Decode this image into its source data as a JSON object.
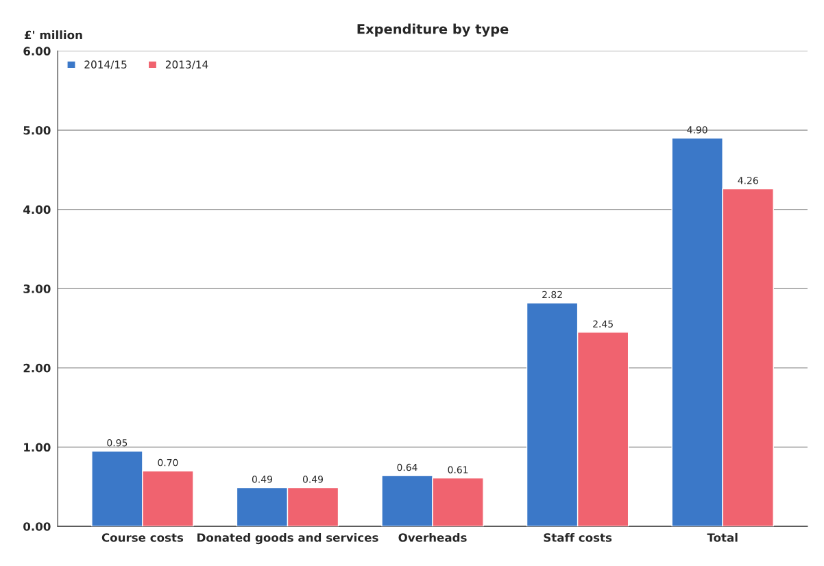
{
  "chart_data": {
    "type": "bar",
    "title": "Expenditure by type",
    "ylabel": "£' million",
    "categories": [
      "Course costs",
      "Donated goods and services",
      "Overheads",
      "Staff costs",
      "Total"
    ],
    "series": [
      {
        "name": "2014/15",
        "color": "#3b78c8",
        "values": [
          0.95,
          0.49,
          0.64,
          2.82,
          4.9
        ],
        "value_labels": [
          "0.95",
          "0.49",
          "0.64",
          "2.82",
          "4.90"
        ]
      },
      {
        "name": "2013/14",
        "color": "#f0636f",
        "values": [
          0.7,
          0.49,
          0.61,
          2.45,
          4.26
        ],
        "value_labels": [
          "0.70",
          "0.49",
          "0.61",
          "2.45",
          "4.26"
        ]
      }
    ],
    "ylim": [
      0,
      6
    ],
    "yticks": [
      {
        "value": 0,
        "label": "0.00"
      },
      {
        "value": 1,
        "label": "1.00"
      },
      {
        "value": 2,
        "label": "2.00"
      },
      {
        "value": 3,
        "label": "3.00"
      },
      {
        "value": 4,
        "label": "4.00"
      },
      {
        "value": 5,
        "label": "5.00"
      },
      {
        "value": 6,
        "label": "6.00"
      }
    ],
    "grid": "y",
    "legend": "top left"
  }
}
